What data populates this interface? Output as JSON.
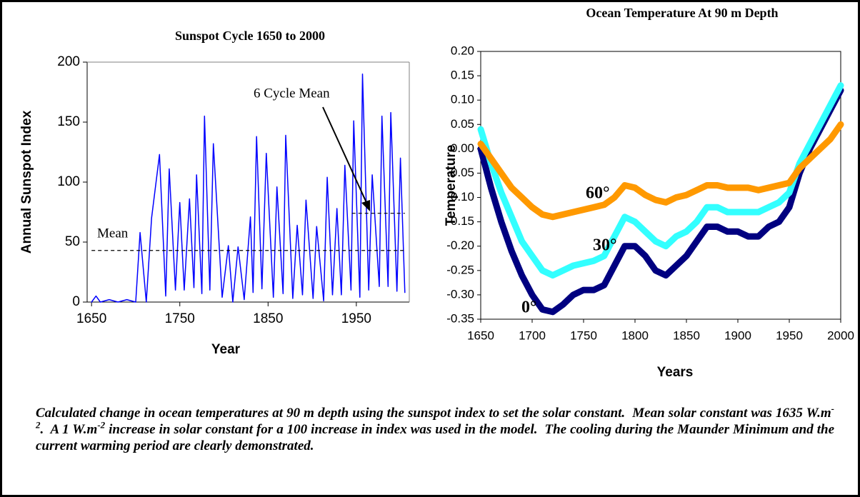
{
  "chart_data": [
    {
      "type": "line",
      "title": "Sunspot Cycle 1650 to 2000",
      "x_label": "Year",
      "y_label": "Annual Sunspot Index",
      "xlim": [
        1645,
        2010
      ],
      "xticks": [
        1650,
        1750,
        1850,
        1950
      ],
      "ylim": [
        0,
        200
      ],
      "yticks": [
        0,
        50,
        100,
        150,
        200
      ],
      "series": [
        {
          "color": "#0000ff",
          "x": [
            1650,
            1655,
            1660,
            1670,
            1680,
            1690,
            1700,
            1705,
            1712,
            1718,
            1727,
            1734,
            1738,
            1745,
            1750,
            1755,
            1761,
            1766,
            1769,
            1775,
            1778,
            1784,
            1788,
            1798,
            1805,
            1810,
            1816,
            1823,
            1830,
            1833,
            1837,
            1843,
            1848,
            1856,
            1860,
            1867,
            1870,
            1878,
            1883,
            1889,
            1893,
            1901,
            1905,
            1913,
            1917,
            1923,
            1928,
            1933,
            1937,
            1944,
            1947,
            1954,
            1957,
            1964,
            1968,
            1976,
            1979,
            1986,
            1989,
            1996,
            2000,
            2005
          ],
          "values": [
            0,
            5,
            0,
            2,
            0,
            2,
            0,
            58,
            0,
            70,
            123,
            5,
            111,
            10,
            83,
            10,
            86,
            12,
            106,
            7,
            155,
            10,
            132,
            4,
            47,
            0,
            46,
            2,
            71,
            8,
            138,
            11,
            124,
            4,
            96,
            7,
            139,
            3,
            64,
            6,
            85,
            3,
            63,
            1,
            104,
            6,
            78,
            6,
            114,
            10,
            151,
            4,
            190,
            10,
            106,
            13,
            155,
            13,
            158,
            9,
            120,
            8
          ]
        }
      ],
      "reference_lines": [
        {
          "value": 43,
          "x": [
            1650,
            2005
          ]
        },
        {
          "value": 74,
          "x": [
            1945,
            2005
          ]
        }
      ],
      "annotations": [
        "Mean",
        "6 Cycle Mean"
      ]
    },
    {
      "type": "line",
      "title": "Ocean Temperature At 90 m Depth",
      "x_label": "Years",
      "y_label": "Temperature",
      "xlim": [
        1650,
        2000
      ],
      "xticks": [
        1650,
        1700,
        1750,
        1800,
        1850,
        1900,
        1950,
        2000
      ],
      "ylim": [
        -0.35,
        0.2
      ],
      "yticks": [
        {
          "value": -0.35,
          "label": "-0.35"
        },
        {
          "value": -0.3,
          "label": "-0.30"
        },
        {
          "value": -0.25,
          "label": "-0.25"
        },
        {
          "value": -0.2,
          "label": "-0.20"
        },
        {
          "value": -0.15,
          "label": "-0.15"
        },
        {
          "value": -0.1,
          "label": "-0.10"
        },
        {
          "value": -0.05,
          "label": "-0.05"
        },
        {
          "value": 0,
          "label": "0.00"
        },
        {
          "value": 0.05,
          "label": "0.05"
        },
        {
          "value": 0.1,
          "label": "0.10"
        },
        {
          "value": 0.15,
          "label": "0.15"
        },
        {
          "value": 0.2,
          "label": "0.20"
        }
      ],
      "x": [
        1650,
        1660,
        1670,
        1680,
        1690,
        1700,
        1710,
        1720,
        1730,
        1740,
        1750,
        1760,
        1770,
        1780,
        1790,
        1800,
        1810,
        1820,
        1830,
        1840,
        1850,
        1860,
        1870,
        1880,
        1890,
        1900,
        1910,
        1920,
        1930,
        1940,
        1950,
        1960,
        1970,
        1980,
        1990,
        2000
      ],
      "series": [
        {
          "name": "0°",
          "color": "#000080",
          "values": [
            0,
            -0.08,
            -0.15,
            -0.21,
            -0.26,
            -0.3,
            -0.33,
            -0.335,
            -0.32,
            -0.3,
            -0.29,
            -0.29,
            -0.28,
            -0.24,
            -0.2,
            -0.2,
            -0.22,
            -0.25,
            -0.26,
            -0.24,
            -0.22,
            -0.19,
            -0.16,
            -0.16,
            -0.17,
            -0.17,
            -0.18,
            -0.18,
            -0.16,
            -0.15,
            -0.12,
            -0.05,
            0,
            0.04,
            0.08,
            0.12
          ]
        },
        {
          "name": "30°",
          "color": "#33ffff",
          "values": [
            0.04,
            -0.03,
            -0.09,
            -0.14,
            -0.19,
            -0.22,
            -0.25,
            -0.26,
            -0.25,
            -0.24,
            -0.235,
            -0.23,
            -0.22,
            -0.18,
            -0.14,
            -0.15,
            -0.17,
            -0.19,
            -0.2,
            -0.18,
            -0.17,
            -0.15,
            -0.12,
            -0.12,
            -0.13,
            -0.13,
            -0.13,
            -0.13,
            -0.12,
            -0.11,
            -0.09,
            -0.03,
            0.01,
            0.05,
            0.09,
            0.13
          ]
        },
        {
          "name": "60°",
          "color": "#ff9900",
          "values": [
            0.01,
            -0.02,
            -0.05,
            -0.08,
            -0.1,
            -0.12,
            -0.135,
            -0.14,
            -0.135,
            -0.13,
            -0.125,
            -0.12,
            -0.115,
            -0.1,
            -0.075,
            -0.08,
            -0.095,
            -0.105,
            -0.11,
            -0.1,
            -0.095,
            -0.085,
            -0.075,
            -0.075,
            -0.08,
            -0.08,
            -0.08,
            -0.085,
            -0.08,
            -0.075,
            -0.07,
            -0.04,
            -0.02,
            0,
            0.02,
            0.05
          ]
        }
      ]
    }
  ],
  "caption": [
    {
      "text": "Calculated change in ocean temperatures at 90 m depth using the sunspot index to set the solar constant.  Mean solar constant was 1635 W.m"
    },
    {
      "sup": "-2"
    },
    {
      "text": ".  A 1 W.m"
    },
    {
      "sup": "-2"
    },
    {
      "text": " increase in solar constant for a 100 increase in index was used in the model.  The cooling during the Maunder Minimum and the current warming period are clearly demonstrated."
    }
  ]
}
